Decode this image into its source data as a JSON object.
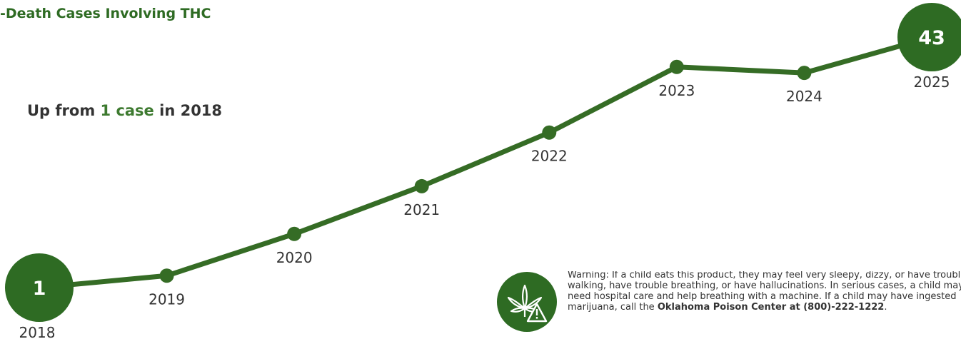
{
  "title": "-Death Cases Involving THC",
  "subtitle": {
    "prefix": "Up from ",
    "highlight": "1 case",
    "suffix": " in 2018"
  },
  "colors": {
    "line": "#356c25",
    "accent": "#3d7a2f",
    "bubble": "#2e6b23",
    "text": "#333333"
  },
  "chart_data": {
    "type": "line",
    "x": [
      "2018",
      "2019",
      "2020",
      "2021",
      "2022",
      "2023",
      "2024",
      "2025"
    ],
    "y": [
      1,
      3,
      10,
      18,
      27,
      38,
      37,
      43
    ],
    "labeled_values": {
      "2018": "1",
      "2025": "43"
    },
    "title": "-Death Cases Involving THC",
    "xlabel": "",
    "ylabel": "",
    "grid": false
  },
  "warning": {
    "icon": "cannabis-warning-icon",
    "text_before": "Warning: If a child eats this product, they may feel very sleepy, dizzy, or have trouble walking, have trouble breathing, or have hallucinations. In serious cases, a child may need hospital care and help breathing with a machine. If a child may have ingested marijuana, call the ",
    "text_bold": "Oklahoma Poison Center at (800)-222-1222",
    "text_after": "."
  }
}
